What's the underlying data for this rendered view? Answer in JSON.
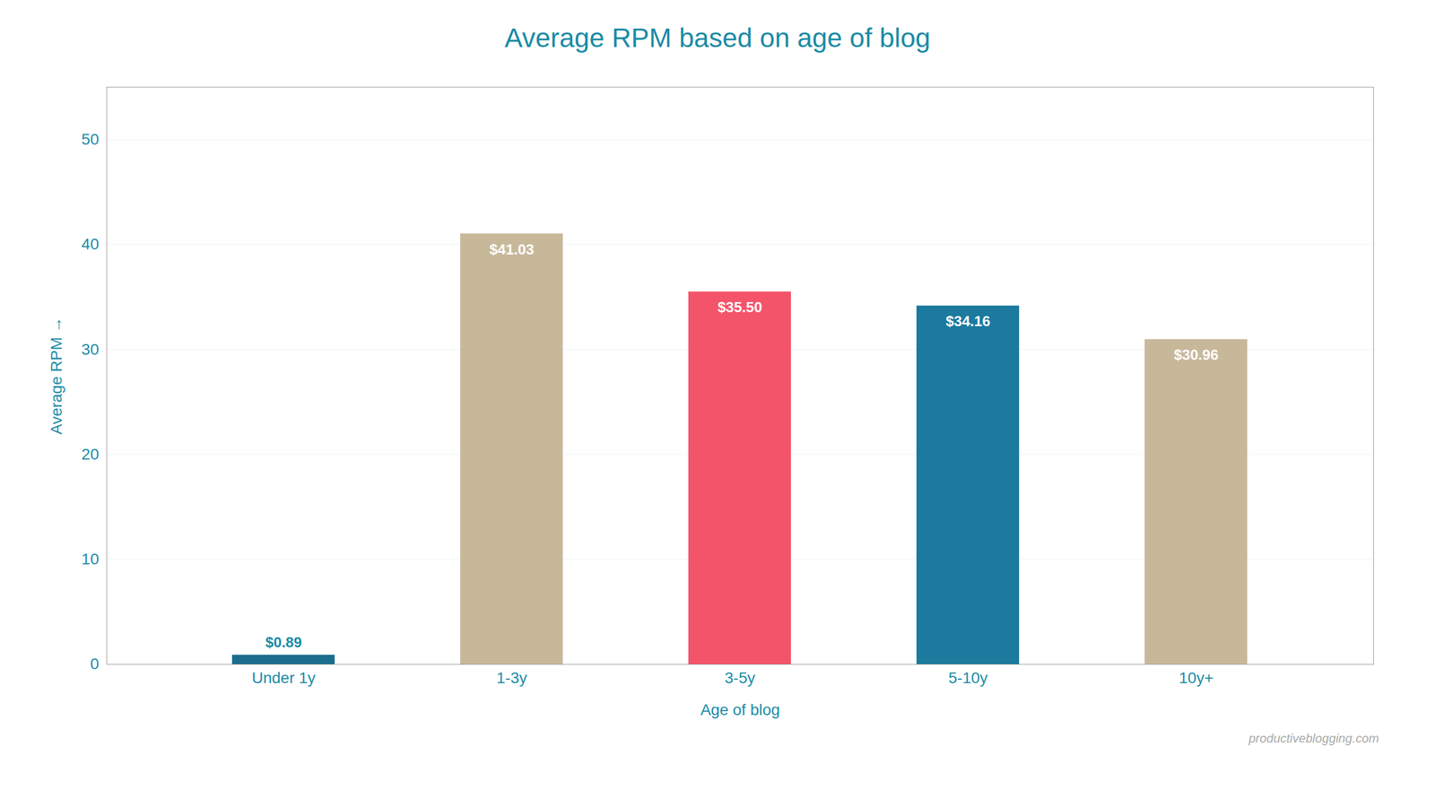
{
  "chart_data": {
    "type": "bar",
    "title": "Average RPM based on age of blog",
    "xlabel": "Age of blog",
    "ylabel": "Average RPM",
    "categories": [
      "Under 1y",
      "1-3y",
      "3-5y",
      "5-10y",
      "10y+"
    ],
    "values": [
      0.89,
      41.03,
      35.5,
      34.16,
      30.96
    ],
    "value_labels": [
      "$0.89",
      "$41.03",
      "$35.50",
      "$34.16",
      "$30.96"
    ],
    "colors": [
      "#1b6d8e",
      "#c8b89a",
      "#f4546a",
      "#1b7a9e",
      "#c8b89a"
    ],
    "ylim": [
      0,
      55
    ],
    "yticks": [
      0,
      10,
      20,
      30,
      40,
      50
    ],
    "grid": true,
    "data_labels": true,
    "annotations": [
      "productiveblogging.com"
    ]
  }
}
